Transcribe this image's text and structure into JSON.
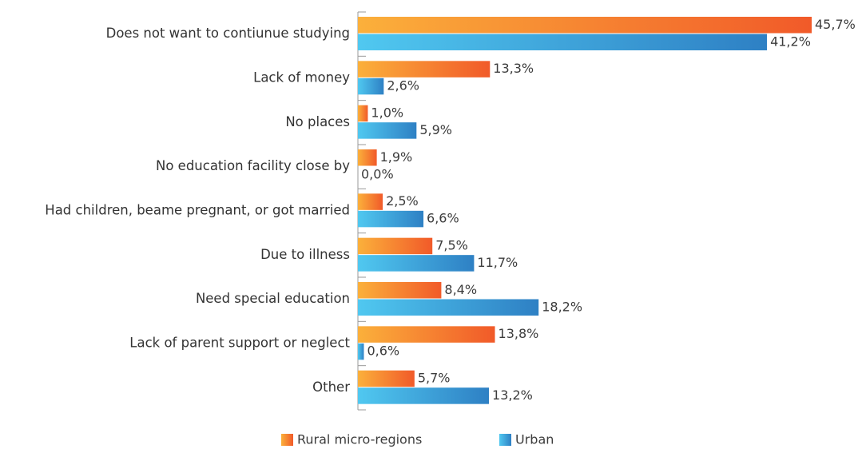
{
  "chart_data": {
    "type": "hbar",
    "categories": [
      "Does not want to contiunue studying",
      "Lack of money",
      "No places",
      "No education facility close by",
      "Had children, beame pregnant, or got married",
      "Due to illness",
      "Need special education",
      "Lack of parent support or neglect",
      "Other"
    ],
    "series": [
      {
        "name": "Rural micro-regions",
        "color": "#f15a29",
        "values": [
          45.7,
          13.3,
          1.0,
          1.9,
          2.5,
          7.5,
          8.4,
          13.8,
          5.7
        ],
        "value_labels": [
          "45,7%",
          "13,3%",
          "1,0%",
          "1,9%",
          "2,5%",
          "7,5%",
          "8,4%",
          "13,8%",
          "5,7%"
        ]
      },
      {
        "name": "Urban",
        "color": "#2e80c4",
        "values": [
          41.2,
          2.6,
          5.9,
          0.0,
          6.6,
          11.7,
          18.2,
          0.6,
          13.2
        ],
        "value_labels": [
          "41,2%",
          "2,6%",
          "5,9%",
          "0,0%",
          "6,6%",
          "11,7%",
          "18,2%",
          "0,6%",
          "13,2%"
        ]
      }
    ],
    "legend": "bottom"
  }
}
